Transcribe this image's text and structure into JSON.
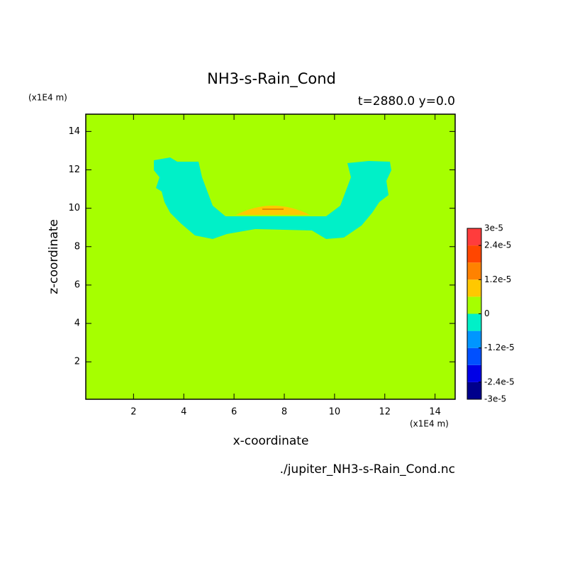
{
  "chart_data": {
    "type": "contour",
    "title": "NH3-s-Rain_Cond",
    "subtitle": "t=2880.0 y=0.0",
    "x_label": "x-coordinate",
    "y_label": "z-coordinate",
    "x_unit": "(x1E4 m)",
    "y_unit": "(x1E4 m)",
    "source": "./jupiter_NH3-s-Rain_Cond.nc",
    "xlim": [
      0.1,
      14.8
    ],
    "ylim": [
      0.05,
      14.9
    ],
    "xticks": [
      2,
      4,
      6,
      8,
      10,
      12,
      14
    ],
    "yticks": [
      2,
      4,
      6,
      8,
      10,
      12,
      14
    ],
    "levels": [
      -3e-05,
      -2.4e-05,
      -1.8e-05,
      -1.2e-05,
      -6e-06,
      0,
      6e-06,
      1.2e-05,
      1.8e-05,
      2.4e-05,
      3e-05
    ],
    "colors": [
      "#00008c",
      "#0000e6",
      "#0050ff",
      "#0096ff",
      "#00f0c8",
      "#a6ff00",
      "#ffc800",
      "#ff8200",
      "#ff4600",
      "#ff3c3c"
    ],
    "colorbar_ticks": [
      {
        "value": 3e-05,
        "label": "3e-5"
      },
      {
        "value": 2.4e-05,
        "label": "2.4e-5"
      },
      {
        "value": 1.2e-05,
        "label": "1.2e-5"
      },
      0,
      {
        "value": -1.2e-05,
        "label": "-1.2e-5"
      },
      {
        "value": -2.4e-05,
        "label": "-2.4e-5"
      },
      {
        "value": -3e-05,
        "label": "-3e-5"
      }
    ]
  }
}
